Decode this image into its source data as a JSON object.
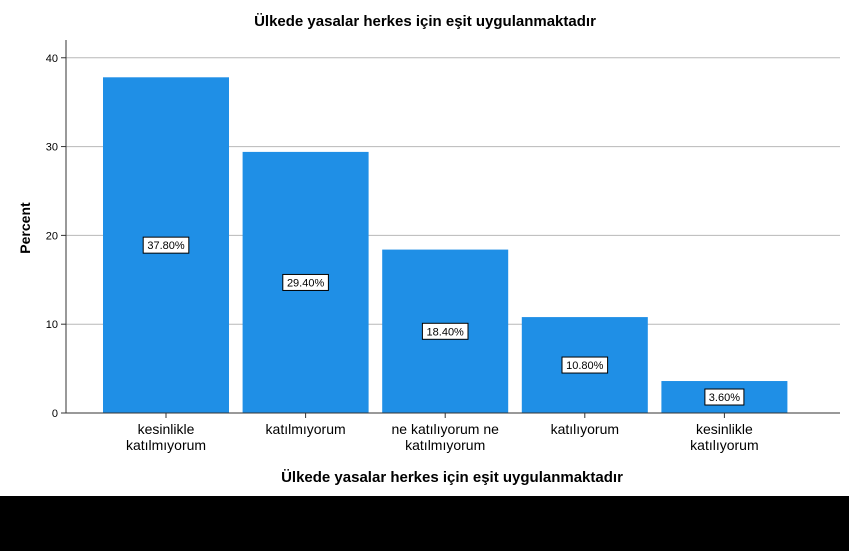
{
  "chart_data": {
    "type": "bar",
    "title": "Ülkede yasalar herkes için eşit uygulanmaktadır",
    "xlabel": "Ülkede yasalar herkes için eşit uygulanmaktadır",
    "ylabel": "Percent",
    "categories": [
      [
        "kesinlikle",
        "katılmıyorum"
      ],
      [
        "katılmıyorum"
      ],
      [
        "ne katılıyorum ne",
        "katılmıyorum"
      ],
      [
        "katılıyorum"
      ],
      [
        "kesinlikle",
        "katılıyorum"
      ]
    ],
    "values": [
      37.8,
      29.4,
      18.4,
      10.8,
      3.6
    ],
    "data_labels": [
      "37.80%",
      "29.40%",
      "18.40%",
      "10.80%",
      "3.60%"
    ],
    "yticks": [
      0,
      10,
      20,
      30,
      40
    ],
    "ylim": [
      0,
      42
    ],
    "grid": true,
    "bar_color": "#1f8fe6"
  }
}
